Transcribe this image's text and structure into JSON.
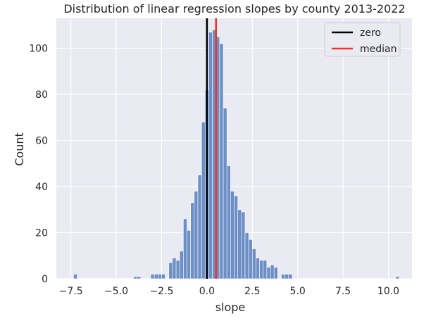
{
  "chart_data": {
    "type": "bar",
    "subtype": "histogram",
    "title": "Distribution of linear regression slopes by county 2013-2022",
    "xlabel": "slope",
    "ylabel": "Count",
    "xlim": [
      -8.3,
      11.3
    ],
    "ylim": [
      0,
      113
    ],
    "grid": true,
    "legend_placement": "top-right",
    "background_color": "#eaeaf2",
    "bar_color": "#6d8fc6",
    "x_ticks": [
      -7.5,
      -5.0,
      -2.5,
      0.0,
      2.5,
      5.0,
      7.5,
      10.0
    ],
    "x_tick_labels": [
      "−7.5",
      "−5.0",
      "−2.5",
      "0.0",
      "2.5",
      "5.0",
      "7.5",
      "10.0"
    ],
    "y_ticks": [
      0,
      20,
      40,
      60,
      80,
      100
    ],
    "y_tick_labels": [
      "0",
      "20",
      "40",
      "60",
      "80",
      "100"
    ],
    "bin_width": 0.198,
    "bins": [
      {
        "x": -7.25,
        "count": 2
      },
      {
        "x": -3.95,
        "count": 1
      },
      {
        "x": -3.75,
        "count": 1
      },
      {
        "x": -3.0,
        "count": 2
      },
      {
        "x": -2.8,
        "count": 2
      },
      {
        "x": -2.6,
        "count": 2
      },
      {
        "x": -2.4,
        "count": 2
      },
      {
        "x": -2.0,
        "count": 7
      },
      {
        "x": -1.8,
        "count": 9
      },
      {
        "x": -1.6,
        "count": 8
      },
      {
        "x": -1.4,
        "count": 12
      },
      {
        "x": -1.2,
        "count": 26
      },
      {
        "x": -1.0,
        "count": 21
      },
      {
        "x": -0.8,
        "count": 33
      },
      {
        "x": -0.6,
        "count": 38
      },
      {
        "x": -0.4,
        "count": 45
      },
      {
        "x": -0.2,
        "count": 68
      },
      {
        "x": 0.0,
        "count": 82
      },
      {
        "x": 0.2,
        "count": 107
      },
      {
        "x": 0.4,
        "count": 108
      },
      {
        "x": 0.6,
        "count": 105
      },
      {
        "x": 0.8,
        "count": 102
      },
      {
        "x": 1.0,
        "count": 74
      },
      {
        "x": 1.2,
        "count": 49
      },
      {
        "x": 1.4,
        "count": 38
      },
      {
        "x": 1.6,
        "count": 36
      },
      {
        "x": 1.8,
        "count": 30
      },
      {
        "x": 2.0,
        "count": 29
      },
      {
        "x": 2.2,
        "count": 20
      },
      {
        "x": 2.4,
        "count": 17
      },
      {
        "x": 2.6,
        "count": 13
      },
      {
        "x": 2.8,
        "count": 9
      },
      {
        "x": 3.0,
        "count": 8
      },
      {
        "x": 3.2,
        "count": 8
      },
      {
        "x": 3.4,
        "count": 5
      },
      {
        "x": 3.6,
        "count": 6
      },
      {
        "x": 3.8,
        "count": 5
      },
      {
        "x": 4.2,
        "count": 2
      },
      {
        "x": 4.4,
        "count": 2
      },
      {
        "x": 4.6,
        "count": 2
      },
      {
        "x": 10.5,
        "count": 1
      }
    ],
    "vertical_lines": [
      {
        "name": "zero",
        "x": 0.0,
        "color": "#000000"
      },
      {
        "name": "median",
        "x": 0.5,
        "color": "#e8382c"
      }
    ]
  }
}
